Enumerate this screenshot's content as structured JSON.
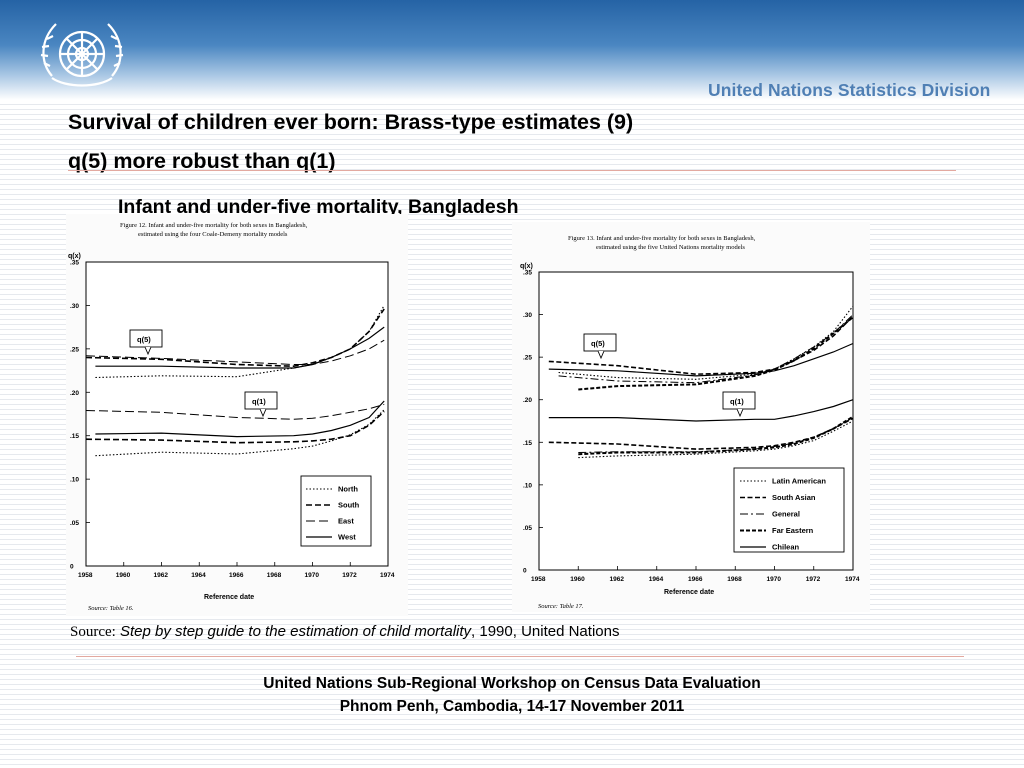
{
  "header": {
    "division": "United Nations Statistics Division"
  },
  "slide": {
    "title_line1": "Survival of children ever born: Brass-type estimates (9)",
    "title_line2": "q(5) more robust than q(1)",
    "subtitle": "Infant and under-five mortality, Bangladesh",
    "source_lead": "Source:",
    "source_italic": "Step by step guide to the estimation of child mortality",
    "source_rest": ", 1990, United Nations"
  },
  "footer": {
    "line1": "United Nations Sub-Regional Workshop on Census Data Evaluation",
    "line2": "Phnom Penh, Cambodia, 14-17 November 2011"
  },
  "colors": {
    "accent": "#4f7fb4",
    "band": "#2563a5",
    "rule": "#e3a9a0"
  },
  "chart_data": [
    {
      "type": "line",
      "caption_line1": "Figure 12.   Infant and under-five mortality for both sexes in Bangladesh,",
      "caption_line2": "estimated using the four Coale-Demeny mortality models",
      "ylabel": "q(x)",
      "xlabel": "Reference date",
      "xlim": [
        1958,
        1974
      ],
      "ylim": [
        0,
        0.35
      ],
      "xticks": [
        "1958",
        "1960",
        "1962",
        "1964",
        "1966",
        "1968",
        "1970",
        "1972",
        "1974"
      ],
      "yticks": [
        "0",
        ".05",
        ".10",
        ".15",
        ".20",
        ".25",
        ".30",
        ".35"
      ],
      "annotations": [
        "q(5)",
        "q(1)"
      ],
      "source": "Source:  Table 16.",
      "legend": [
        "North",
        "South",
        "East",
        "West"
      ],
      "series": [
        {
          "name": "North",
          "group": "q(5)",
          "x": [
            1958.5,
            1962,
            1966,
            1969,
            1970,
            1971,
            1972,
            1973,
            1973.8
          ],
          "y": [
            0.217,
            0.219,
            0.218,
            0.228,
            0.232,
            0.24,
            0.25,
            0.27,
            0.3
          ]
        },
        {
          "name": "South",
          "group": "q(5)",
          "x": [
            1958,
            1962,
            1966,
            1969,
            1970,
            1971,
            1972,
            1973,
            1973.8
          ],
          "y": [
            0.24,
            0.238,
            0.232,
            0.23,
            0.234,
            0.24,
            0.25,
            0.27,
            0.296
          ]
        },
        {
          "name": "East",
          "group": "q(5)",
          "x": [
            1958,
            1962,
            1966,
            1969,
            1970,
            1971,
            1972,
            1973,
            1973.8
          ],
          "y": [
            0.242,
            0.239,
            0.235,
            0.232,
            0.232,
            0.236,
            0.242,
            0.25,
            0.26
          ]
        },
        {
          "name": "West",
          "group": "q(5)",
          "x": [
            1958.5,
            1962,
            1966,
            1969,
            1970,
            1971,
            1972,
            1973,
            1973.8
          ],
          "y": [
            0.23,
            0.23,
            0.228,
            0.228,
            0.232,
            0.24,
            0.25,
            0.262,
            0.275
          ]
        },
        {
          "name": "North",
          "group": "q(1)",
          "x": [
            1958.5,
            1962,
            1966,
            1969,
            1970,
            1971,
            1972,
            1973,
            1973.8
          ],
          "y": [
            0.127,
            0.131,
            0.129,
            0.135,
            0.138,
            0.144,
            0.151,
            0.163,
            0.18
          ]
        },
        {
          "name": "South",
          "group": "q(1)",
          "x": [
            1958,
            1962,
            1966,
            1969,
            1970,
            1971,
            1972,
            1973,
            1973.8
          ],
          "y": [
            0.146,
            0.145,
            0.142,
            0.143,
            0.144,
            0.146,
            0.15,
            0.162,
            0.178
          ]
        },
        {
          "name": "East",
          "group": "q(1)",
          "x": [
            1958,
            1962,
            1966,
            1969,
            1970,
            1971,
            1972,
            1973,
            1973.8
          ],
          "y": [
            0.179,
            0.177,
            0.171,
            0.169,
            0.17,
            0.173,
            0.177,
            0.181,
            0.186
          ]
        },
        {
          "name": "West",
          "group": "q(1)",
          "x": [
            1958.5,
            1962,
            1966,
            1969,
            1970,
            1971,
            1972,
            1973,
            1973.8
          ],
          "y": [
            0.152,
            0.153,
            0.149,
            0.15,
            0.152,
            0.156,
            0.162,
            0.171,
            0.19
          ]
        }
      ]
    },
    {
      "type": "line",
      "caption_line1": "Figure 13.   Infant and under-five mortality for both sexes in Bangladesh,",
      "caption_line2": "estimated using the five United Nations mortality models",
      "ylabel": "q(x)",
      "xlabel": "Reference date",
      "xlim": [
        1958,
        1974
      ],
      "ylim": [
        0,
        0.35
      ],
      "xticks": [
        "1958",
        "1960",
        "1962",
        "1964",
        "1966",
        "1968",
        "1970",
        "1972",
        "1974"
      ],
      "yticks": [
        "0",
        ".05",
        ".10",
        ".15",
        ".20",
        ".25",
        ".30",
        ".35"
      ],
      "annotations": [
        "q(5)",
        "q(1)"
      ],
      "source": "Source:  Table 17.",
      "legend": [
        "Latin American",
        "South Asian",
        "General",
        "Far Eastern",
        "Chilean"
      ],
      "series": [
        {
          "name": "Latin American",
          "group": "q(5)",
          "x": [
            1959,
            1962,
            1966,
            1969,
            1970,
            1971,
            1972,
            1973,
            1974
          ],
          "y": [
            0.232,
            0.226,
            0.224,
            0.23,
            0.236,
            0.248,
            0.262,
            0.28,
            0.31
          ]
        },
        {
          "name": "South Asian",
          "group": "q(5)",
          "x": [
            1958.5,
            1962,
            1966,
            1969,
            1970,
            1971,
            1972,
            1973,
            1974
          ],
          "y": [
            0.245,
            0.24,
            0.23,
            0.232,
            0.236,
            0.246,
            0.258,
            0.275,
            0.298
          ]
        },
        {
          "name": "General",
          "group": "q(5)",
          "x": [
            1959,
            1962,
            1966,
            1969,
            1970,
            1971,
            1972,
            1973,
            1974
          ],
          "y": [
            0.228,
            0.222,
            0.22,
            0.229,
            0.236,
            0.248,
            0.262,
            0.278,
            0.3
          ]
        },
        {
          "name": "Far Eastern",
          "group": "q(5)",
          "x": [
            1960,
            1962,
            1966,
            1969,
            1970,
            1971,
            1972,
            1973,
            1974
          ],
          "y": [
            0.212,
            0.216,
            0.218,
            0.228,
            0.235,
            0.246,
            0.26,
            0.278,
            0.297
          ]
        },
        {
          "name": "Chilean",
          "group": "q(5)",
          "x": [
            1958.5,
            1962,
            1966,
            1969,
            1970,
            1971,
            1972,
            1973,
            1974
          ],
          "y": [
            0.236,
            0.234,
            0.228,
            0.231,
            0.234,
            0.24,
            0.248,
            0.256,
            0.266
          ]
        },
        {
          "name": "Latin American",
          "group": "q(1)",
          "x": [
            1960,
            1962,
            1966,
            1969,
            1970,
            1971,
            1972,
            1973,
            1974
          ],
          "y": [
            0.132,
            0.134,
            0.136,
            0.14,
            0.142,
            0.146,
            0.152,
            0.163,
            0.175
          ]
        },
        {
          "name": "South Asian",
          "group": "q(1)",
          "x": [
            1958.5,
            1962,
            1966,
            1969,
            1970,
            1971,
            1972,
            1973,
            1974
          ],
          "y": [
            0.15,
            0.148,
            0.142,
            0.144,
            0.146,
            0.15,
            0.156,
            0.166,
            0.178
          ]
        },
        {
          "name": "General",
          "group": "q(1)",
          "x": [
            1960,
            1962,
            1966,
            1969,
            1970,
            1971,
            1972,
            1973,
            1974
          ],
          "y": [
            0.138,
            0.139,
            0.139,
            0.142,
            0.145,
            0.149,
            0.156,
            0.166,
            0.179
          ]
        },
        {
          "name": "Far Eastern",
          "group": "q(1)",
          "x": [
            1960,
            1962,
            1966,
            1969,
            1970,
            1971,
            1972,
            1973,
            1974
          ],
          "y": [
            0.136,
            0.138,
            0.138,
            0.142,
            0.144,
            0.148,
            0.155,
            0.166,
            0.18
          ]
        },
        {
          "name": "Chilean",
          "group": "q(1)",
          "x": [
            1958.5,
            1962,
            1966,
            1969,
            1970,
            1971,
            1972,
            1973,
            1974
          ],
          "y": [
            0.179,
            0.179,
            0.175,
            0.177,
            0.177,
            0.181,
            0.186,
            0.192,
            0.2
          ]
        }
      ]
    }
  ]
}
